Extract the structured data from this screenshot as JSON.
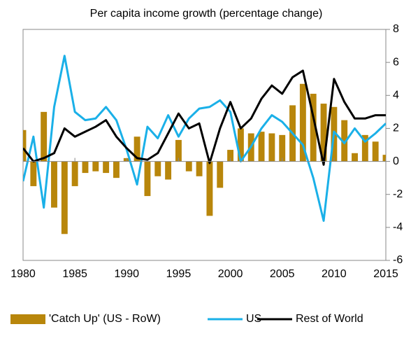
{
  "chart_data": {
    "type": "bar",
    "title": "Per capita income growth (percentage change)",
    "x": [
      1980,
      1981,
      1982,
      1983,
      1984,
      1985,
      1986,
      1987,
      1988,
      1989,
      1990,
      1991,
      1992,
      1993,
      1994,
      1995,
      1996,
      1997,
      1998,
      1999,
      2000,
      2001,
      2002,
      2003,
      2004,
      2005,
      2006,
      2007,
      2008,
      2009,
      2010,
      2011,
      2012,
      2013,
      2014,
      2015
    ],
    "series": [
      {
        "name": "'Catch Up' (US - RoW)",
        "type": "bar",
        "color": "#b8860b",
        "values": [
          1.9,
          -1.5,
          3.0,
          -2.8,
          -4.4,
          -1.5,
          -0.7,
          -0.6,
          -0.7,
          -1.0,
          0.2,
          1.5,
          -2.1,
          -0.9,
          -1.1,
          1.3,
          -0.6,
          -0.9,
          -3.3,
          -1.6,
          0.7,
          2.0,
          1.7,
          1.8,
          1.7,
          1.6,
          3.4,
          4.7,
          4.1,
          3.5,
          3.3,
          2.5,
          0.5,
          1.6,
          1.2,
          0.4
        ]
      },
      {
        "name": "US",
        "type": "line",
        "color": "#1ab0e8",
        "values": [
          -1.2,
          1.5,
          -2.8,
          3.3,
          6.4,
          3.0,
          2.5,
          2.6,
          3.3,
          2.5,
          0.7,
          -1.4,
          2.1,
          1.4,
          2.8,
          1.5,
          2.6,
          3.2,
          3.3,
          3.7,
          3.0,
          0.0,
          0.9,
          2.0,
          2.8,
          2.4,
          1.7,
          1.0,
          -1.0,
          -3.6,
          1.8,
          1.1,
          2.0,
          1.2,
          1.7,
          2.3
        ]
      },
      {
        "name": "Rest of World",
        "type": "line",
        "color": "#000000",
        "values": [
          0.8,
          0.0,
          0.2,
          0.5,
          2.0,
          1.5,
          1.8,
          2.1,
          2.5,
          1.5,
          0.8,
          0.2,
          0.1,
          0.5,
          1.7,
          2.9,
          2.0,
          2.3,
          -0.1,
          2.0,
          3.6,
          2.0,
          2.6,
          3.8,
          4.6,
          4.1,
          5.1,
          5.5,
          2.7,
          -0.2,
          5.0,
          3.6,
          2.6,
          2.6,
          2.8,
          2.8
        ]
      }
    ],
    "xlim": [
      1980,
      2015
    ],
    "xticks": [
      1980,
      1985,
      1990,
      1995,
      2000,
      2005,
      2010,
      2015
    ],
    "ylim": [
      -6,
      8
    ],
    "yticks": [
      -6,
      -4,
      -2,
      0,
      2,
      4,
      6,
      8
    ],
    "legend": "bottom"
  }
}
